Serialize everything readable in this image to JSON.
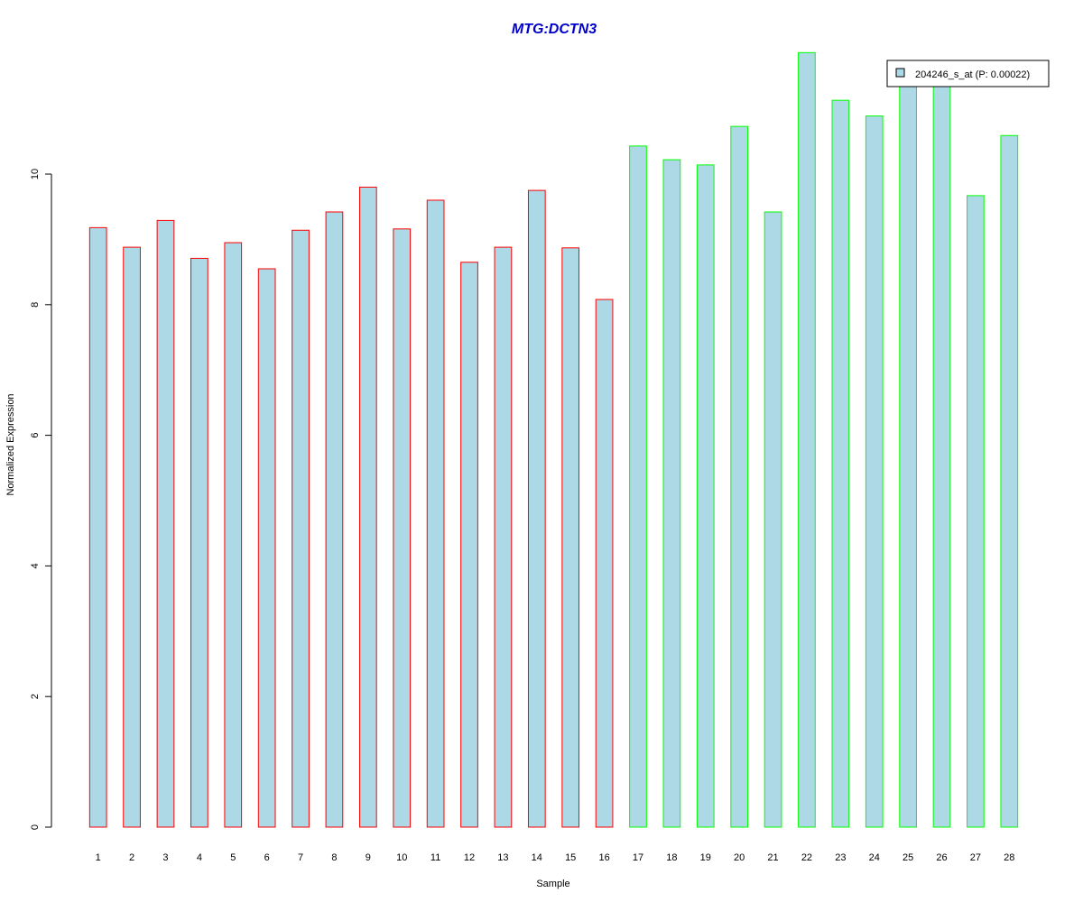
{
  "chart_data": {
    "type": "bar",
    "title": "MTG:DCTN3",
    "xlabel": "Sample",
    "ylabel": "Normalized Expression",
    "categories": [
      "1",
      "2",
      "3",
      "4",
      "5",
      "6",
      "7",
      "8",
      "9",
      "10",
      "11",
      "12",
      "13",
      "14",
      "15",
      "16",
      "17",
      "18",
      "19",
      "20",
      "21",
      "22",
      "23",
      "24",
      "25",
      "26",
      "27",
      "28"
    ],
    "values": [
      9.18,
      8.88,
      9.29,
      8.71,
      8.95,
      8.55,
      9.14,
      9.42,
      9.8,
      9.16,
      9.6,
      8.65,
      8.88,
      9.75,
      8.87,
      8.08,
      10.43,
      10.22,
      10.14,
      10.73,
      9.42,
      11.86,
      11.13,
      10.89,
      11.42,
      11.42,
      9.67,
      10.59
    ],
    "groups": [
      "red",
      "red",
      "red",
      "red",
      "red",
      "red",
      "red",
      "red",
      "red",
      "red",
      "red",
      "red",
      "red",
      "red",
      "red",
      "red",
      "green",
      "green",
      "green",
      "green",
      "green",
      "green",
      "green",
      "green",
      "green",
      "green",
      "green",
      "green"
    ],
    "ylim": [
      0,
      12
    ],
    "yticks": [
      0,
      2,
      4,
      6,
      8,
      10
    ],
    "grid": false,
    "legend": {
      "placement": "top-right",
      "entries": [
        {
          "label": "204246_s_at (P: 0.00022)",
          "color": "#add8e6"
        }
      ]
    },
    "colors": {
      "bar_fill": "#add8e6",
      "group_red": "#ff0000",
      "group_green": "#00ff00",
      "title": "#0000cc"
    }
  }
}
